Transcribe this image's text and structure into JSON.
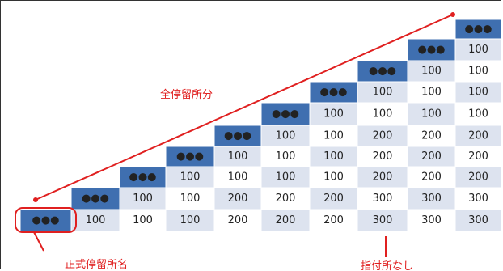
{
  "colors": {
    "header_blue": "#3f6fb0",
    "cell_light": "#dde3ef",
    "cell_white": "#ffffff",
    "dots": "#0b1020",
    "annotation_red": "#e02020"
  },
  "labels": {
    "diagonal_label": "全停留所分",
    "bottom_left_label": "正式停留所名",
    "bottom_right_label": "指付所なし"
  },
  "rows": [
    [
      "100"
    ],
    [
      "100",
      "100"
    ],
    [
      "100",
      "100",
      "100"
    ],
    [
      "100",
      "100",
      "100",
      "100"
    ],
    [
      "100",
      "100",
      "200",
      "200",
      "200"
    ],
    [
      "100",
      "100",
      "100",
      "200",
      "200",
      "200"
    ],
    [
      "100",
      "100",
      "100",
      "100",
      "200",
      "200",
      "200"
    ],
    [
      "100",
      "100",
      "200",
      "200",
      "200",
      "300",
      "300",
      "300"
    ],
    [
      "100",
      "100",
      "100",
      "200",
      "200",
      "200",
      "300",
      "300",
      "300"
    ]
  ],
  "header_symbol": "●●●"
}
